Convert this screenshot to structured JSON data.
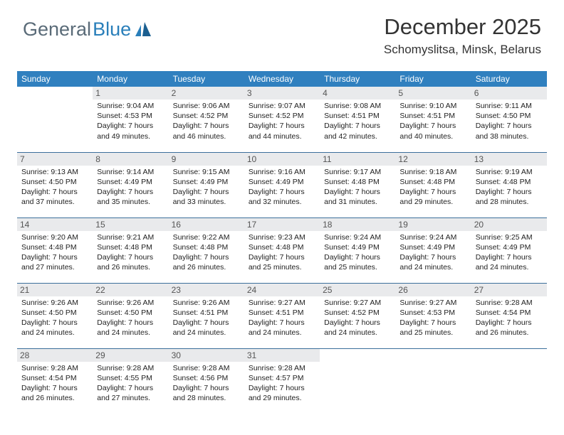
{
  "brand": {
    "part1": "General",
    "part2": "Blue"
  },
  "title": "December 2025",
  "location": "Schomyslitsa, Minsk, Belarus",
  "colors": {
    "header_bg": "#3080bf",
    "header_fg": "#ffffff",
    "daynum_bg": "#e9eaec",
    "daynum_fg": "#555555",
    "rule": "#3b6f9b",
    "brand_gray": "#5a6b78",
    "brand_blue": "#2a7fba"
  },
  "weekdays": [
    "Sunday",
    "Monday",
    "Tuesday",
    "Wednesday",
    "Thursday",
    "Friday",
    "Saturday"
  ],
  "layout": {
    "first_weekday_index": 1,
    "days_in_month": 31
  },
  "days": {
    "1": {
      "sunrise": "9:04 AM",
      "sunset": "4:53 PM",
      "daylight": "7 hours and 49 minutes."
    },
    "2": {
      "sunrise": "9:06 AM",
      "sunset": "4:52 PM",
      "daylight": "7 hours and 46 minutes."
    },
    "3": {
      "sunrise": "9:07 AM",
      "sunset": "4:52 PM",
      "daylight": "7 hours and 44 minutes."
    },
    "4": {
      "sunrise": "9:08 AM",
      "sunset": "4:51 PM",
      "daylight": "7 hours and 42 minutes."
    },
    "5": {
      "sunrise": "9:10 AM",
      "sunset": "4:51 PM",
      "daylight": "7 hours and 40 minutes."
    },
    "6": {
      "sunrise": "9:11 AM",
      "sunset": "4:50 PM",
      "daylight": "7 hours and 38 minutes."
    },
    "7": {
      "sunrise": "9:13 AM",
      "sunset": "4:50 PM",
      "daylight": "7 hours and 37 minutes."
    },
    "8": {
      "sunrise": "9:14 AM",
      "sunset": "4:49 PM",
      "daylight": "7 hours and 35 minutes."
    },
    "9": {
      "sunrise": "9:15 AM",
      "sunset": "4:49 PM",
      "daylight": "7 hours and 33 minutes."
    },
    "10": {
      "sunrise": "9:16 AM",
      "sunset": "4:49 PM",
      "daylight": "7 hours and 32 minutes."
    },
    "11": {
      "sunrise": "9:17 AM",
      "sunset": "4:48 PM",
      "daylight": "7 hours and 31 minutes."
    },
    "12": {
      "sunrise": "9:18 AM",
      "sunset": "4:48 PM",
      "daylight": "7 hours and 29 minutes."
    },
    "13": {
      "sunrise": "9:19 AM",
      "sunset": "4:48 PM",
      "daylight": "7 hours and 28 minutes."
    },
    "14": {
      "sunrise": "9:20 AM",
      "sunset": "4:48 PM",
      "daylight": "7 hours and 27 minutes."
    },
    "15": {
      "sunrise": "9:21 AM",
      "sunset": "4:48 PM",
      "daylight": "7 hours and 26 minutes."
    },
    "16": {
      "sunrise": "9:22 AM",
      "sunset": "4:48 PM",
      "daylight": "7 hours and 26 minutes."
    },
    "17": {
      "sunrise": "9:23 AM",
      "sunset": "4:48 PM",
      "daylight": "7 hours and 25 minutes."
    },
    "18": {
      "sunrise": "9:24 AM",
      "sunset": "4:49 PM",
      "daylight": "7 hours and 25 minutes."
    },
    "19": {
      "sunrise": "9:24 AM",
      "sunset": "4:49 PM",
      "daylight": "7 hours and 24 minutes."
    },
    "20": {
      "sunrise": "9:25 AM",
      "sunset": "4:49 PM",
      "daylight": "7 hours and 24 minutes."
    },
    "21": {
      "sunrise": "9:26 AM",
      "sunset": "4:50 PM",
      "daylight": "7 hours and 24 minutes."
    },
    "22": {
      "sunrise": "9:26 AM",
      "sunset": "4:50 PM",
      "daylight": "7 hours and 24 minutes."
    },
    "23": {
      "sunrise": "9:26 AM",
      "sunset": "4:51 PM",
      "daylight": "7 hours and 24 minutes."
    },
    "24": {
      "sunrise": "9:27 AM",
      "sunset": "4:51 PM",
      "daylight": "7 hours and 24 minutes."
    },
    "25": {
      "sunrise": "9:27 AM",
      "sunset": "4:52 PM",
      "daylight": "7 hours and 24 minutes."
    },
    "26": {
      "sunrise": "9:27 AM",
      "sunset": "4:53 PM",
      "daylight": "7 hours and 25 minutes."
    },
    "27": {
      "sunrise": "9:28 AM",
      "sunset": "4:54 PM",
      "daylight": "7 hours and 26 minutes."
    },
    "28": {
      "sunrise": "9:28 AM",
      "sunset": "4:54 PM",
      "daylight": "7 hours and 26 minutes."
    },
    "29": {
      "sunrise": "9:28 AM",
      "sunset": "4:55 PM",
      "daylight": "7 hours and 27 minutes."
    },
    "30": {
      "sunrise": "9:28 AM",
      "sunset": "4:56 PM",
      "daylight": "7 hours and 28 minutes."
    },
    "31": {
      "sunrise": "9:28 AM",
      "sunset": "4:57 PM",
      "daylight": "7 hours and 29 minutes."
    }
  },
  "labels": {
    "sunrise": "Sunrise: ",
    "sunset": "Sunset: ",
    "daylight": "Daylight: "
  }
}
